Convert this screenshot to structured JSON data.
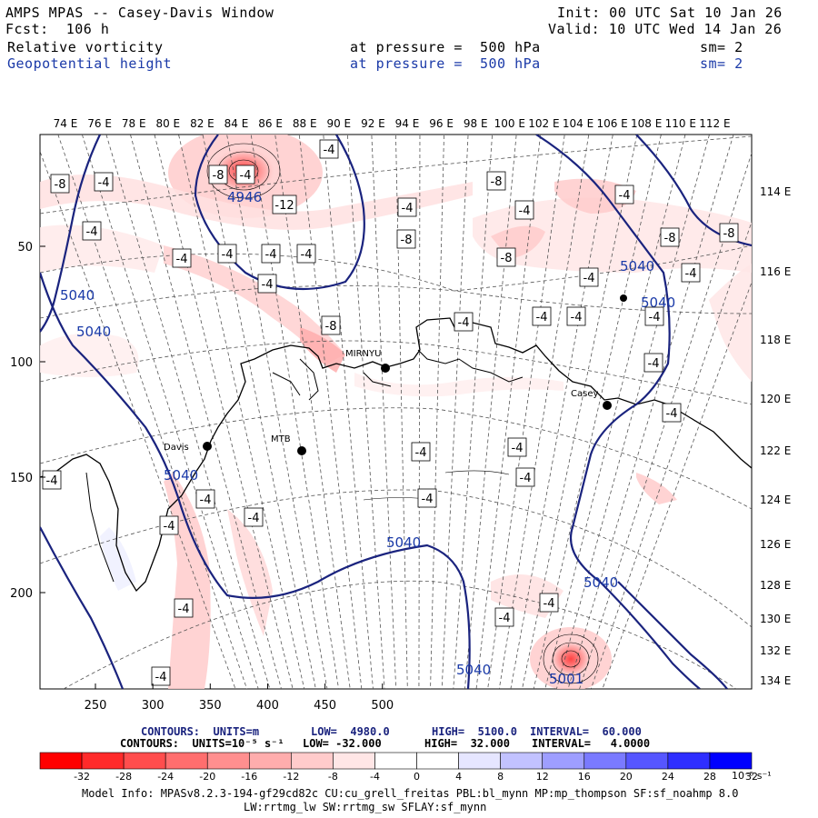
{
  "header": {
    "model": "AMPS MPAS -- Casey-Davis Window",
    "fcst_label": "Fcst:  106 h",
    "init": "Init: 00 UTC Sat 10 Jan 26",
    "valid": "Valid: 10 UTC Wed 14 Jan 26",
    "field1": "Relative vorticity",
    "field1_level": "at pressure =  500 hPa",
    "field1_sm": "sm= 2",
    "field2": "Geopotential height",
    "field2_level": "at pressure =  500 hPa",
    "field2_sm": "sm= 2"
  },
  "colors": {
    "geopotential_contour": "#1a237e",
    "negative_fill": "#ff0000",
    "positive_fill": "#0000ff",
    "coastline": "#000000"
  },
  "chart_data": {
    "type": "heatmap",
    "x_ticks": [
      250,
      300,
      350,
      400,
      450,
      500
    ],
    "y_ticks": [
      50,
      100,
      150,
      200
    ],
    "top_longitudes": [
      "74 E",
      "76 E",
      "78 E",
      "80 E",
      "82 E",
      "84 E",
      "86 E",
      "88 E",
      "90 E",
      "92 E",
      "94 E",
      "96 E",
      "98 E",
      "100 E",
      "102 E",
      "104 E",
      "106 E",
      "108 E",
      "110 E",
      "112 E"
    ],
    "right_longitudes": [
      "114 E",
      "116 E",
      "118 E",
      "120 E",
      "122 E",
      "124 E",
      "126 E",
      "128 E",
      "130 E",
      "132 E",
      "134 E"
    ],
    "stations": [
      {
        "name": "MIRNYU",
        "lon": 93.0,
        "lat": -66.55
      },
      {
        "name": "Casey",
        "lon": 110.5,
        "lat": -66.28
      },
      {
        "name": "Davis",
        "lon": 77.97,
        "lat": -68.58
      },
      {
        "name": "MTB",
        "lon": 88.5,
        "lat": -70.5
      }
    ],
    "geopotential_labels": [
      "5040",
      "5040",
      "5040",
      "5040",
      "5040",
      "5040",
      "5040",
      "5040",
      "4946",
      "5001"
    ],
    "vorticity_labels": [
      "-8",
      "-4",
      "-8",
      "-4",
      "-12",
      "-4",
      "-4",
      "-4",
      "-4",
      "-4",
      "-4",
      "-4",
      "-4",
      "-8",
      "-8",
      "-4",
      "-4",
      "-8",
      "-4",
      "-8",
      "-8",
      "-4",
      "-4",
      "-8",
      "-4",
      "-4",
      "-4",
      "-4",
      "-4",
      "-4",
      "-4",
      "-4",
      "-4",
      "-4",
      "-4",
      "-4",
      "-4",
      "-4",
      "-4",
      "-4",
      "-4"
    ],
    "contour_info": {
      "height": {
        "units": "CONTOURS:  UNITS=m",
        "low": "LOW=  4980.0",
        "high": "HIGH=  5100.0",
        "interval": "INTERVAL=  60.000"
      },
      "vorticity": {
        "units": "CONTOURS:  UNITS=10⁻⁵ s⁻¹",
        "low": "LOW= -32.000",
        "high": "HIGH=  32.000",
        "interval": "INTERVAL=   4.0000"
      }
    },
    "colorbar": {
      "ticks": [
        "-32",
        "-28",
        "-24",
        "-20",
        "-16",
        "-12",
        "-8",
        "-4",
        "0",
        "4",
        "8",
        "12",
        "16",
        "20",
        "24",
        "28",
        "32"
      ],
      "unit": "10⁻⁵ s⁻¹",
      "colors": [
        "#ff0000",
        "#ff2a2a",
        "#ff4d4d",
        "#ff6e6e",
        "#ff8f8f",
        "#ffadad",
        "#ffcbcb",
        "#ffe6e6",
        "#ffffff",
        "#ffffff",
        "#e6e6ff",
        "#c2c2ff",
        "#9e9eff",
        "#7a7aff",
        "#5656ff",
        "#2e2eff",
        "#0000ff"
      ]
    }
  },
  "footer": {
    "model_info": "Model Info: MPASv8.2.3-194-gf29cd82c CU:cu_grell_freitas PBL:bl_mynn MP:mp_thompson SF:sf_noahmp 8.0",
    "model_info2": "LW:rrtmg_lw SW:rrtmg_sw SFLAY:sf_mynn"
  }
}
